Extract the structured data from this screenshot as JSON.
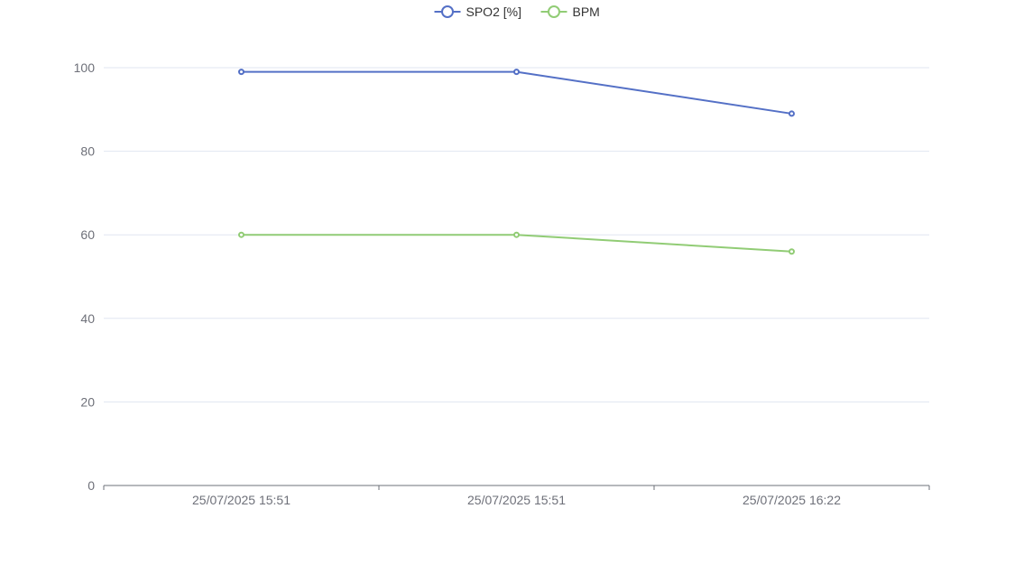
{
  "chart_data": {
    "type": "line",
    "categories": [
      "25/07/2025 15:51",
      "25/07/2025 15:51",
      "25/07/2025 16:22"
    ],
    "series": [
      {
        "name": "SPO2 [%]",
        "values": [
          99,
          99,
          89
        ],
        "color": "#5470c6"
      },
      {
        "name": "BPM",
        "values": [
          60,
          60,
          56
        ],
        "color": "#91cc75"
      }
    ],
    "ylim": [
      0,
      100
    ],
    "yticks": [
      0,
      20,
      40,
      60,
      80,
      100
    ],
    "grid": true,
    "legend_position": "top-center"
  }
}
